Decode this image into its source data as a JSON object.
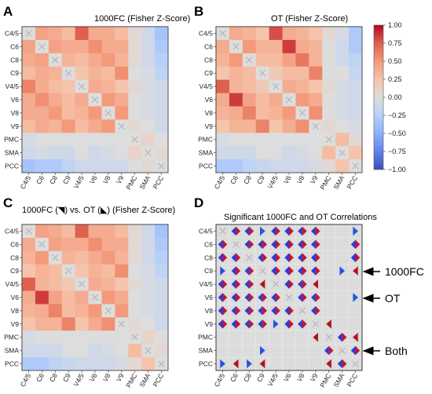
{
  "chart_data": [
    {
      "type": "heatmap",
      "panel_label": "A",
      "title": "1000FC (Fisher Z-Score)",
      "categories": [
        "C4/5",
        "C6",
        "C8",
        "C9",
        "V4/5",
        "V6",
        "V8",
        "V9",
        "PMC",
        "SMA",
        "PCC"
      ],
      "values": [
        [
          0,
          0.45,
          0.4,
          0.3,
          0.75,
          0.4,
          0.4,
          0.3,
          0.05,
          -0.1,
          -0.35
        ],
        [
          0.45,
          0,
          0.45,
          0.4,
          0.4,
          0.55,
          0.4,
          0.4,
          0.05,
          -0.1,
          -0.3
        ],
        [
          0.4,
          0.45,
          0,
          0.35,
          0.3,
          0.4,
          0.5,
          0.35,
          0.05,
          -0.1,
          -0.25
        ],
        [
          0.3,
          0.4,
          0.35,
          0,
          0.25,
          0.35,
          0.3,
          0.55,
          0,
          -0.05,
          -0.2
        ],
        [
          0.6,
          0.4,
          0.3,
          0.25,
          0,
          0.4,
          0.35,
          0.25,
          0.05,
          -0.05,
          -0.1
        ],
        [
          0.4,
          0.55,
          0.4,
          0.3,
          0.4,
          0,
          0.5,
          0.4,
          0,
          -0.05,
          -0.1
        ],
        [
          0.4,
          0.4,
          0.5,
          0.3,
          0.35,
          0.5,
          0,
          0.5,
          0,
          -0.05,
          -0.1
        ],
        [
          0.3,
          0.4,
          0.35,
          0.5,
          0.3,
          0.4,
          0.5,
          0,
          0.05,
          0,
          -0.1
        ],
        [
          -0.05,
          0,
          0,
          0,
          0,
          0,
          0,
          0,
          0,
          0.1,
          0
        ],
        [
          -0.1,
          -0.05,
          -0.1,
          -0.1,
          0,
          -0.1,
          -0.05,
          0,
          0.1,
          0,
          0.05
        ],
        [
          -0.35,
          -0.3,
          -0.3,
          -0.2,
          -0.1,
          -0.1,
          -0.1,
          -0.1,
          0,
          0.05,
          0
        ]
      ]
    },
    {
      "type": "heatmap",
      "panel_label": "B",
      "title": "OT (Fisher Z-Score)",
      "categories": [
        "C4/5",
        "C6",
        "C8",
        "C9",
        "V4/5",
        "V6",
        "V8",
        "V9",
        "PMC",
        "SMA",
        "PCC"
      ],
      "values": [
        [
          0,
          0.4,
          0.35,
          0.25,
          0.8,
          0.4,
          0.35,
          0.25,
          0.05,
          -0.05,
          -0.3
        ],
        [
          0.4,
          0,
          0.5,
          0.35,
          0.35,
          0.85,
          0.4,
          0.35,
          0,
          -0.1,
          -0.3
        ],
        [
          0.35,
          0.5,
          0,
          0.3,
          0.3,
          0.45,
          0.65,
          0.35,
          0,
          -0.1,
          -0.2
        ],
        [
          0.25,
          0.35,
          0.3,
          0,
          0.2,
          0.3,
          0.3,
          0.6,
          0,
          0,
          -0.15
        ],
        [
          0.75,
          0.35,
          0.3,
          0.2,
          0,
          0.4,
          0.35,
          0.25,
          0.05,
          -0.05,
          -0.1
        ],
        [
          0.4,
          0.85,
          0.45,
          0.3,
          0.4,
          0,
          0.5,
          0.4,
          0,
          -0.05,
          -0.1
        ],
        [
          0.35,
          0.4,
          0.6,
          0.3,
          0.35,
          0.5,
          0,
          0.55,
          0,
          -0.05,
          -0.1
        ],
        [
          0.25,
          0.35,
          0.35,
          0.6,
          0.25,
          0.4,
          0.55,
          0,
          0.05,
          0,
          -0.05
        ],
        [
          -0.05,
          0,
          0,
          0,
          0,
          0,
          0,
          0,
          0,
          0.3,
          0.05
        ],
        [
          -0.1,
          -0.1,
          -0.1,
          0,
          0,
          -0.1,
          -0.05,
          0,
          0.3,
          0,
          0.25
        ],
        [
          -0.3,
          -0.3,
          -0.2,
          -0.15,
          -0.1,
          -0.1,
          -0.1,
          -0.05,
          0.05,
          0.25,
          0
        ]
      ]
    },
    {
      "type": "heatmap",
      "panel_label": "C",
      "title": "1000FC (◥) vs. OT (◣) (Fisher Z-Score)",
      "categories": [
        "C4/5",
        "C6",
        "C8",
        "C9",
        "V4/5",
        "V6",
        "V8",
        "V9",
        "PMC",
        "SMA",
        "PCC"
      ],
      "values": [
        [
          0,
          0.45,
          0.4,
          0.3,
          0.75,
          0.4,
          0.4,
          0.3,
          0.05,
          -0.1,
          -0.35
        ],
        [
          0.4,
          0,
          0.45,
          0.4,
          0.4,
          0.55,
          0.4,
          0.4,
          0.05,
          -0.1,
          -0.3
        ],
        [
          0.35,
          0.5,
          0,
          0.35,
          0.3,
          0.4,
          0.5,
          0.35,
          0.05,
          -0.1,
          -0.25
        ],
        [
          0.25,
          0.35,
          0.3,
          0,
          0.25,
          0.35,
          0.3,
          0.55,
          0,
          -0.05,
          -0.2
        ],
        [
          0.75,
          0.35,
          0.3,
          0.2,
          0,
          0.4,
          0.35,
          0.25,
          0.05,
          -0.05,
          -0.1
        ],
        [
          0.4,
          0.85,
          0.45,
          0.3,
          0.4,
          0,
          0.5,
          0.4,
          0,
          -0.05,
          -0.1
        ],
        [
          0.35,
          0.4,
          0.6,
          0.3,
          0.35,
          0.5,
          0,
          0.5,
          0,
          -0.05,
          -0.1
        ],
        [
          0.25,
          0.35,
          0.35,
          0.6,
          0.25,
          0.4,
          0.55,
          0,
          0.05,
          0,
          -0.1
        ],
        [
          -0.05,
          0,
          0,
          0,
          0,
          0,
          0,
          0,
          0,
          0.1,
          0
        ],
        [
          -0.1,
          -0.1,
          -0.1,
          0,
          0,
          -0.1,
          -0.05,
          0,
          0.3,
          0,
          0.05
        ],
        [
          -0.3,
          -0.3,
          -0.2,
          -0.15,
          -0.1,
          -0.1,
          -0.1,
          -0.05,
          0.05,
          0.25,
          0
        ]
      ]
    },
    {
      "type": "table",
      "panel_label": "D",
      "title": "Significant 1000FC and OT Correlations",
      "categories": [
        "C4/5",
        "C6",
        "C8",
        "C9",
        "V4/5",
        "V6",
        "V8",
        "V9",
        "PMC",
        "SMA",
        "PCC"
      ],
      "legend_code": {
        "1": "1000FC",
        "2": "OT",
        "3": "Both"
      },
      "significance": [
        [
          0,
          3,
          3,
          2,
          3,
          3,
          3,
          3,
          0,
          0,
          2
        ],
        [
          3,
          0,
          3,
          3,
          3,
          3,
          3,
          3,
          0,
          0,
          3
        ],
        [
          3,
          3,
          0,
          3,
          3,
          3,
          3,
          3,
          0,
          0,
          3
        ],
        [
          2,
          3,
          3,
          0,
          3,
          3,
          3,
          3,
          0,
          2,
          1
        ],
        [
          3,
          3,
          3,
          1,
          0,
          3,
          3,
          1,
          0,
          0,
          0
        ],
        [
          3,
          3,
          3,
          3,
          3,
          0,
          3,
          3,
          0,
          0,
          2
        ],
        [
          3,
          3,
          3,
          3,
          3,
          3,
          0,
          3,
          0,
          0,
          0
        ],
        [
          3,
          3,
          3,
          3,
          2,
          3,
          3,
          0,
          1,
          0,
          0
        ],
        [
          0,
          0,
          0,
          0,
          0,
          0,
          0,
          1,
          0,
          3,
          1
        ],
        [
          0,
          0,
          0,
          2,
          0,
          0,
          0,
          0,
          3,
          0,
          3
        ],
        [
          2,
          1,
          2,
          1,
          0,
          0,
          0,
          0,
          1,
          3,
          0
        ]
      ],
      "annotations": [
        "1000FC",
        "OT",
        "Both"
      ]
    }
  ],
  "colorbar": {
    "ticks": [
      1.0,
      0.75,
      0.5,
      0.25,
      0.0,
      -0.25,
      -0.5,
      -0.75,
      -1.0
    ],
    "tick_labels": [
      "1.00",
      "0.75",
      "0.50",
      "0.25",
      "0.00",
      "−0.25",
      "−0.50",
      "−0.75",
      "−1.00"
    ],
    "range": [
      -1,
      1
    ],
    "colormap": "coolwarm"
  },
  "colors": {
    "both_red": "#c8102e",
    "both_blue": "#2a3bd8",
    "ot_blue": "#2255dd",
    "fc_red": "#b0131e",
    "diag_x": "#b9b9b9",
    "cell_bg": "#dcdcdc"
  }
}
